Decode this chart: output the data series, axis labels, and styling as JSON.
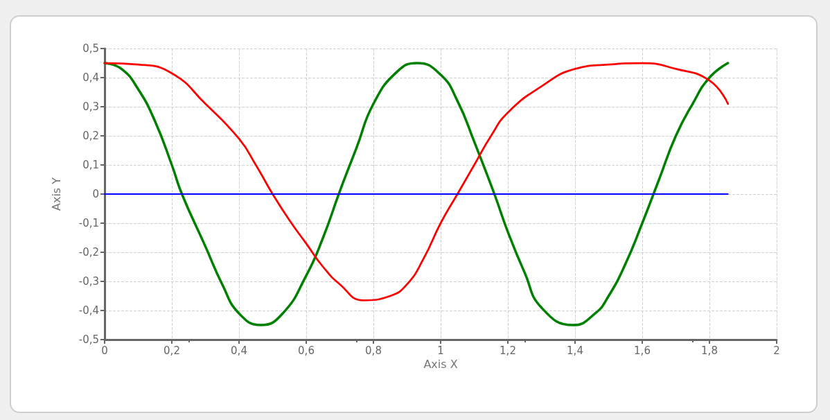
{
  "chart_data": {
    "type": "line",
    "xlabel": "Axis X",
    "ylabel": "Axis Y",
    "xlim": [
      0,
      2
    ],
    "xticks": [
      0,
      {
        "value": 0.2,
        "label": "0,2"
      },
      {
        "value": 0.4,
        "label": "0,4"
      },
      {
        "value": 0.6,
        "label": "0,6"
      },
      {
        "value": 0.8,
        "label": "0,8"
      },
      1,
      {
        "value": 1.2,
        "label": "1,2"
      },
      {
        "value": 1.4,
        "label": "1,4"
      },
      {
        "value": 1.6,
        "label": "1,6"
      },
      {
        "value": 1.8,
        "label": "1,8"
      },
      2
    ],
    "ylim": [
      -0.5,
      0.5
    ],
    "yticks": [
      {
        "value": -0.5,
        "label": "-0,5"
      },
      {
        "value": -0.4,
        "label": "-0,4"
      },
      {
        "value": -0.3,
        "label": "-0,3"
      },
      {
        "value": -0.2,
        "label": "-0,2"
      },
      {
        "value": -0.1,
        "label": "-0,1"
      },
      0,
      {
        "value": 0.1,
        "label": "0,1"
      },
      {
        "value": 0.2,
        "label": "0,2"
      },
      {
        "value": 0.3,
        "label": "0,3"
      },
      {
        "value": 0.4,
        "label": "0,4"
      },
      {
        "value": 0.5,
        "label": "0,5"
      }
    ],
    "grid": true,
    "marker": "none",
    "line_style": "solid",
    "series": [
      {
        "color": "#0000ff",
        "x": [
          0,
          1.855
        ],
        "values": [
          0,
          0
        ]
      },
      {
        "color": "#ff0000",
        "x": [
          0,
          0.1,
          0.2,
          0.3,
          0.4,
          0.45,
          0.5,
          0.55,
          0.6,
          0.65,
          0.7,
          0.77,
          0.85,
          0.9,
          0.95,
          1.0,
          1.05,
          1.1,
          1.15,
          1.2,
          1.3,
          1.4,
          1.5,
          1.6,
          1.7,
          1.8,
          1.855
        ],
        "values": [
          0.45,
          0.445,
          0.415,
          0.31,
          0.19,
          0.1,
          0,
          -0.09,
          -0.17,
          -0.25,
          -0.31,
          -0.365,
          -0.35,
          -0.31,
          -0.22,
          -0.1,
          0,
          0.1,
          0.2,
          0.28,
          0.37,
          0.43,
          0.445,
          0.45,
          0.43,
          0.39,
          0.31
        ]
      },
      {
        "color": "#008000",
        "x": [
          0,
          0.05,
          0.1,
          0.15,
          0.2,
          0.23,
          0.3,
          0.35,
          0.4,
          0.465,
          0.53,
          0.6,
          0.65,
          0.7,
          0.75,
          0.8,
          0.87,
          0.93,
          1.0,
          1.05,
          1.1,
          1.16,
          1.2,
          1.25,
          1.3,
          1.395,
          1.46,
          1.5,
          1.55,
          1.6,
          1.65,
          1.7,
          1.75,
          1.8,
          1.855
        ],
        "values": [
          0.45,
          0.43,
          0.36,
          0.25,
          0.1,
          0,
          -0.18,
          -0.31,
          -0.41,
          -0.45,
          -0.41,
          -0.28,
          -0.15,
          0.01,
          0.16,
          0.31,
          0.42,
          0.45,
          0.41,
          0.32,
          0.18,
          0,
          -0.13,
          -0.27,
          -0.39,
          -0.45,
          -0.41,
          -0.35,
          -0.24,
          -0.1,
          0.05,
          0.2,
          0.31,
          0.4,
          0.45
        ]
      }
    ]
  }
}
